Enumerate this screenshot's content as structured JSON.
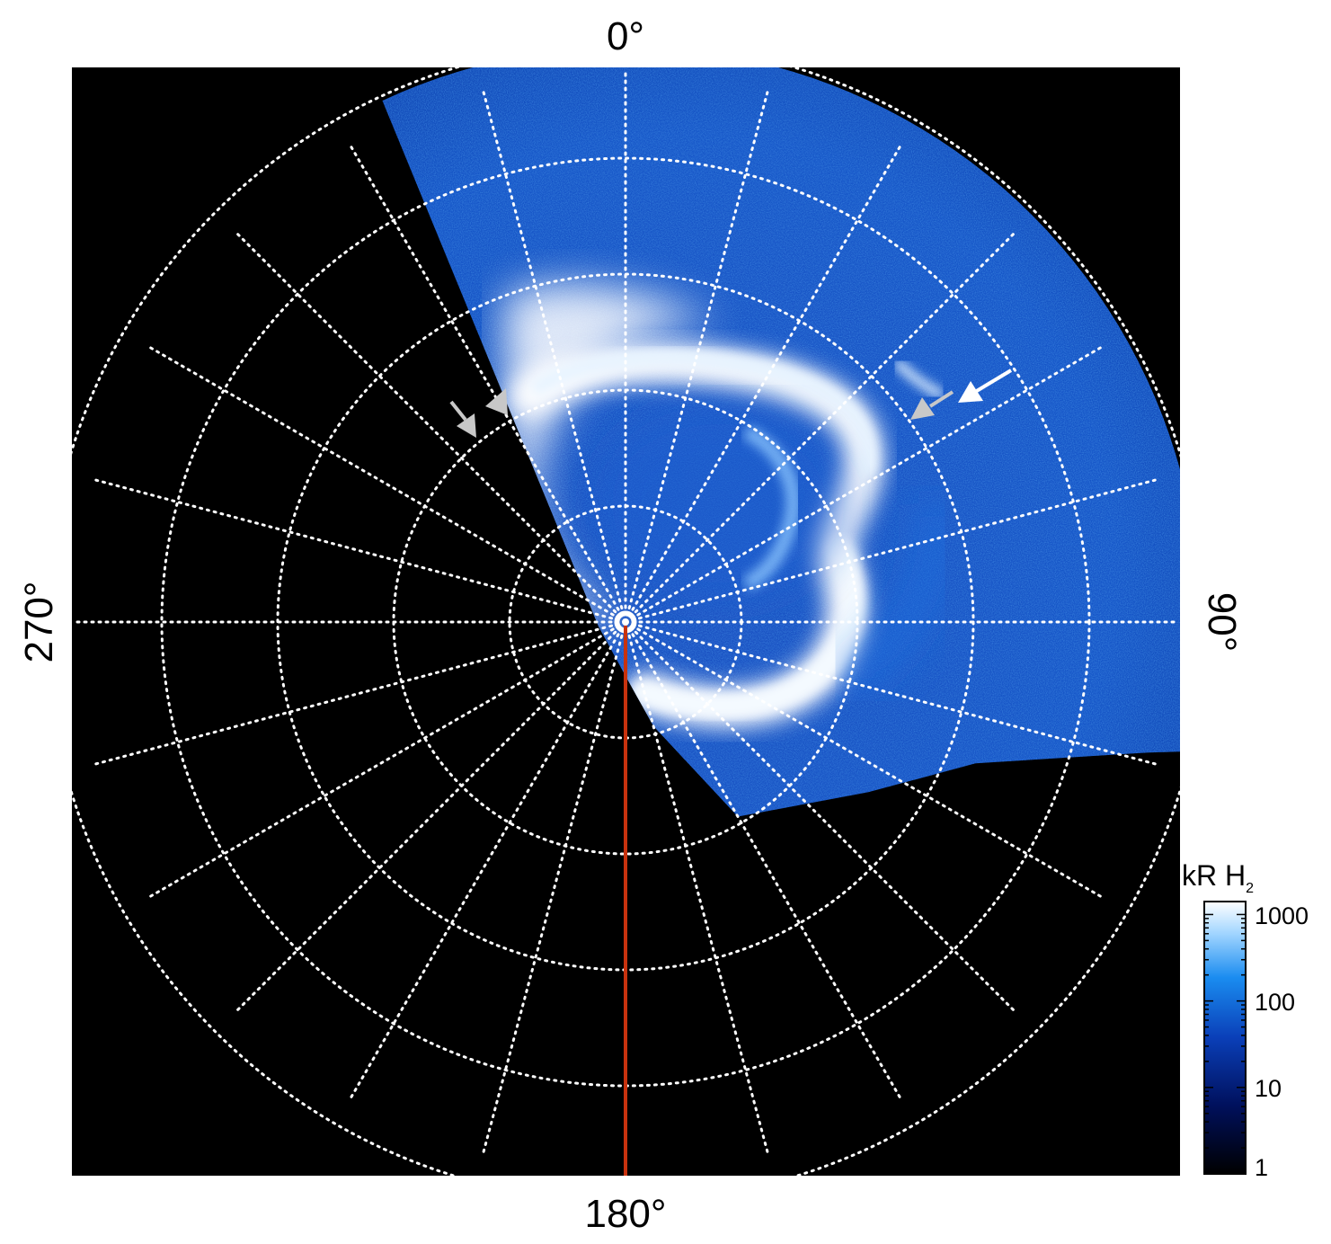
{
  "image": {
    "description_labels": {
      "top": "0°",
      "right": "90°",
      "bottom": "180°",
      "left": "270°"
    },
    "colorbar": {
      "title_main": "kR H",
      "title_sub": "2",
      "ticks": [
        "1000",
        "100",
        "10",
        "1"
      ]
    },
    "colors": {
      "background": "#000000",
      "grid": "#ffffff",
      "meridian": "#c8320e",
      "arrow_white": "#ffffff",
      "arrow_grey": "#c8c8c8"
    }
  }
}
